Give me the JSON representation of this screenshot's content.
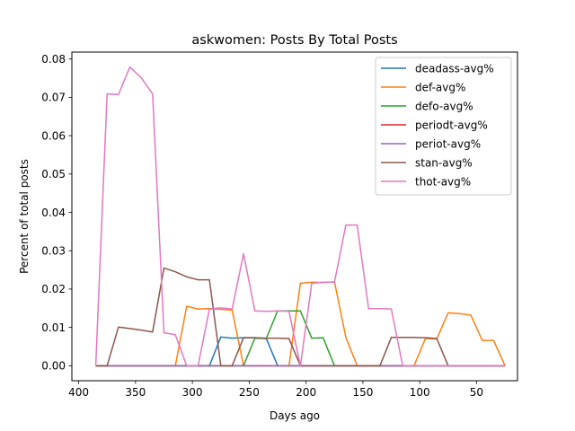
{
  "chart_data": {
    "type": "line",
    "title": "askwomen: Posts By Total Posts",
    "xlabel": "Days ago",
    "ylabel": "Percent of total posts",
    "xlim": [
      406,
      14
    ],
    "ylim": [
      -0.0039,
      0.0818
    ],
    "xticks": [
      400,
      350,
      300,
      250,
      200,
      150,
      100,
      50
    ],
    "yticks": [
      0.0,
      0.01,
      0.02,
      0.03,
      0.04,
      0.05,
      0.06,
      0.07,
      0.08
    ],
    "ytick_labels": [
      "0.00",
      "0.01",
      "0.02",
      "0.03",
      "0.04",
      "0.05",
      "0.06",
      "0.07",
      "0.08"
    ],
    "grid": false,
    "legend_position": "top-right",
    "x": [
      385,
      375,
      365,
      355,
      345,
      335,
      325,
      315,
      305,
      295,
      285,
      275,
      265,
      255,
      245,
      235,
      225,
      215,
      205,
      195,
      185,
      175,
      165,
      155,
      145,
      135,
      125,
      115,
      105,
      95,
      85,
      75,
      65,
      55,
      45,
      35,
      25
    ],
    "series": [
      {
        "name": "deadass-avg%",
        "color": "#1f77b4",
        "values": [
          0,
          0,
          0,
          0,
          0,
          0,
          0,
          0,
          0,
          0,
          0,
          0.0075,
          0.0072,
          0.0073,
          0.0073,
          0.0071,
          0,
          0,
          0,
          0,
          0,
          0,
          0,
          0,
          0,
          0,
          0,
          0,
          0,
          0,
          0,
          0,
          0,
          0,
          0,
          0,
          0
        ]
      },
      {
        "name": "def-avg%",
        "color": "#ff7f0e",
        "values": [
          0,
          0,
          0,
          0,
          0,
          0,
          0,
          0,
          0.0155,
          0.0148,
          0.0149,
          0.0147,
          0.0145,
          0,
          0,
          0,
          0,
          0,
          0.0215,
          0.0218,
          0.0217,
          0.0219,
          0.0074,
          0,
          0,
          0,
          0,
          0,
          0,
          0.0071,
          0.007,
          0.0138,
          0.0136,
          0.0132,
          0.0066,
          0.0066,
          0
        ]
      },
      {
        "name": "defo-avg%",
        "color": "#2ca02c",
        "values": [
          0,
          0,
          0,
          0,
          0,
          0,
          0,
          0,
          0,
          0,
          0,
          0,
          0,
          0,
          0.0072,
          0.0071,
          0.0143,
          0.0143,
          0.0143,
          0.0072,
          0.0073,
          0,
          0,
          0,
          0,
          0,
          0,
          0,
          0,
          0,
          0,
          0,
          0,
          0,
          0,
          0,
          0
        ]
      },
      {
        "name": "periodt-avg%",
        "color": "#d62728",
        "values": [
          0,
          0,
          0,
          0,
          0,
          0,
          0,
          0,
          0,
          0,
          0,
          0,
          0,
          0,
          0,
          0,
          0,
          0,
          0,
          0,
          0,
          0,
          0,
          0,
          0,
          0,
          0,
          0,
          0,
          0,
          0,
          0,
          0,
          0,
          0,
          0,
          0
        ]
      },
      {
        "name": "periot-avg%",
        "color": "#9467bd",
        "values": [
          0,
          0,
          0,
          0,
          0,
          0,
          0,
          0,
          0,
          0,
          0,
          0,
          0,
          0,
          0,
          0,
          0,
          0,
          0,
          0,
          0,
          0,
          0,
          0,
          0,
          0,
          0,
          0,
          0,
          0,
          0,
          0,
          0,
          0,
          0,
          0,
          0
        ]
      },
      {
        "name": "stan-avg%",
        "color": "#8c564b",
        "values": [
          0,
          0,
          0.0101,
          0.0097,
          0.0093,
          0.0088,
          0.0255,
          0.0245,
          0.0232,
          0.0224,
          0.0224,
          0,
          0,
          0.0073,
          0.0073,
          0.0072,
          0.0072,
          0.0071,
          0,
          0,
          0,
          0,
          0,
          0,
          0,
          0,
          0.0074,
          0.0074,
          0.0074,
          0.0073,
          0.0071,
          0,
          0,
          0,
          0,
          0,
          0
        ]
      },
      {
        "name": "thot-avg%",
        "color": "#e377c2",
        "values": [
          0,
          0.0709,
          0.0707,
          0.0779,
          0.0751,
          0.0709,
          0.0086,
          0.0081,
          0,
          0,
          0.0148,
          0.0151,
          0.0148,
          0.0292,
          0.0143,
          0.0142,
          0.0143,
          0.0142,
          0,
          0.0215,
          0.0218,
          0.0218,
          0.0367,
          0.0367,
          0.0149,
          0.0149,
          0.0148,
          0,
          0,
          0,
          0,
          0,
          0,
          0,
          0,
          0,
          0
        ]
      }
    ]
  }
}
